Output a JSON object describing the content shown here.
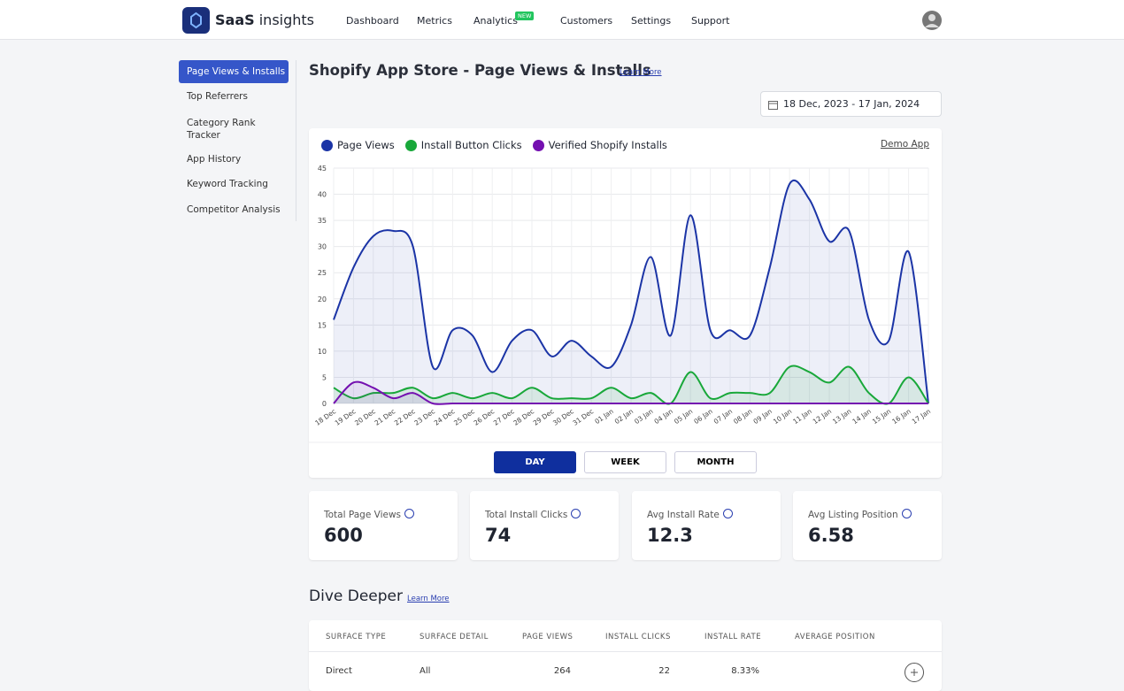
{
  "nav": {
    "brand_bold": "SaaS",
    "brand_light": "insights",
    "items": [
      "Dashboard",
      "Metrics",
      "Analytics",
      "Customers",
      "Settings",
      "Support"
    ],
    "badge": "NEW"
  },
  "sidebar": {
    "items": [
      "Page Views & Installs",
      "Top Referrers",
      "Category Rank Tracker",
      "App History",
      "Keyword Tracking",
      "Competitor Analysis"
    ]
  },
  "header": {
    "title": "Shopify App Store - Page Views & Installs",
    "link": "Learn More",
    "date_range": "18 Dec, 2023 - 17 Jan, 2024"
  },
  "chart_data": {
    "type": "line",
    "link": "Demo App",
    "grid": true,
    "categories": [
      "18 Dec",
      "19 Dec",
      "20 Dec",
      "21 Dec",
      "22 Dec",
      "23 Dec",
      "24 Dec",
      "25 Dec",
      "26 Dec",
      "27 Dec",
      "28 Dec",
      "29 Dec",
      "30 Dec",
      "31 Dec",
      "01 Jan",
      "02 Jan",
      "03 Jan",
      "04 Jan",
      "05 Jan",
      "06 Jan",
      "07 Jan",
      "08 Jan",
      "09 Jan",
      "10 Jan",
      "11 Jan",
      "12 Jan",
      "13 Jan",
      "14 Jan",
      "15 Jan",
      "16 Jan",
      "17 Jan"
    ],
    "series": [
      {
        "name": "Page Views",
        "color": "#1b34a6",
        "fill": "rgba(27,52,166,0.08)",
        "values": [
          16,
          26,
          32,
          33,
          30,
          7,
          14,
          13,
          6,
          12,
          14,
          9,
          12,
          9,
          7,
          15,
          28,
          13,
          36,
          14,
          14,
          13,
          26,
          42,
          39,
          31,
          33,
          16,
          12,
          29,
          0
        ]
      },
      {
        "name": "Install Button Clicks",
        "color": "#19a83a",
        "fill": "rgba(25,168,58,0.10)",
        "values": [
          3,
          1,
          2,
          2,
          3,
          1,
          2,
          1,
          2,
          1,
          3,
          1,
          1,
          1,
          3,
          1,
          2,
          0,
          6,
          1,
          2,
          2,
          2,
          7,
          6,
          4,
          7,
          2,
          0,
          5,
          0
        ]
      },
      {
        "name": "Verified Shopify Installs",
        "color": "#7410b0",
        "fill": "rgba(116,16,176,0.08)",
        "values": [
          0,
          4,
          3,
          1,
          2,
          0,
          0,
          0,
          0,
          0,
          0,
          0,
          0,
          0,
          0,
          0,
          0,
          0,
          0,
          0,
          0,
          0,
          0,
          0,
          0,
          0,
          0,
          0,
          0,
          0,
          0
        ]
      }
    ],
    "ylim": [
      0,
      45
    ],
    "yticks": [
      0,
      5,
      10,
      15,
      20,
      25,
      30,
      35,
      40,
      45
    ],
    "buttons": [
      "DAY",
      "WEEK",
      "MONTH"
    ]
  },
  "stats": [
    {
      "label": "Total Page Views",
      "value": "600"
    },
    {
      "label": "Total Install Clicks",
      "value": "74"
    },
    {
      "label": "Avg Install Rate",
      "value": "12.3"
    },
    {
      "label": "Avg Listing Position",
      "value": "6.58"
    }
  ],
  "section": {
    "title": "Dive Deeper",
    "link": "Learn More"
  },
  "table": {
    "headers": [
      "SURFACE TYPE",
      "SURFACE DETAIL",
      "PAGE VIEWS",
      "INSTALL CLICKS",
      "INSTALL RATE",
      "AVERAGE POSITION"
    ],
    "rows": [
      [
        "Direct",
        "All",
        "264",
        "22",
        "8.33%"
      ]
    ]
  }
}
